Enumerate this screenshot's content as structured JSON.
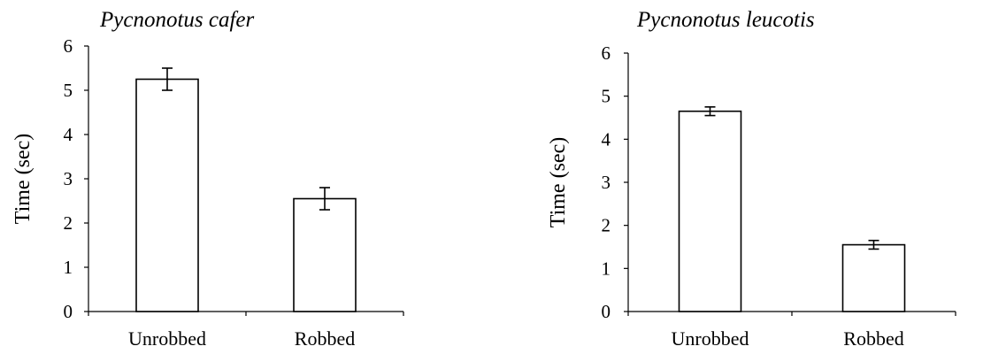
{
  "chart_data": [
    {
      "type": "bar",
      "title": "Pycnonotus cafer",
      "xlabel": "",
      "ylabel": "Time (sec)",
      "ylim": [
        0,
        6
      ],
      "yticks": [
        0,
        1,
        2,
        3,
        4,
        5,
        6
      ],
      "categories": [
        "Unrobbed",
        "Robbed"
      ],
      "values": [
        5.25,
        2.55
      ],
      "error": [
        0.25,
        0.25
      ],
      "grid": false,
      "colors": {
        "bar_fill": "#ffffff",
        "bar_stroke": "#000000"
      }
    },
    {
      "type": "bar",
      "title": "Pycnonotus leucotis",
      "xlabel": "",
      "ylabel": "Time (sec)",
      "ylim": [
        0,
        6
      ],
      "yticks": [
        0,
        1,
        2,
        3,
        4,
        5,
        6
      ],
      "categories": [
        "Unrobbed",
        "Robbed"
      ],
      "values": [
        4.65,
        1.55
      ],
      "error": [
        0.1,
        0.1
      ],
      "grid": false,
      "colors": {
        "bar_fill": "#ffffff",
        "bar_stroke": "#000000"
      }
    }
  ]
}
